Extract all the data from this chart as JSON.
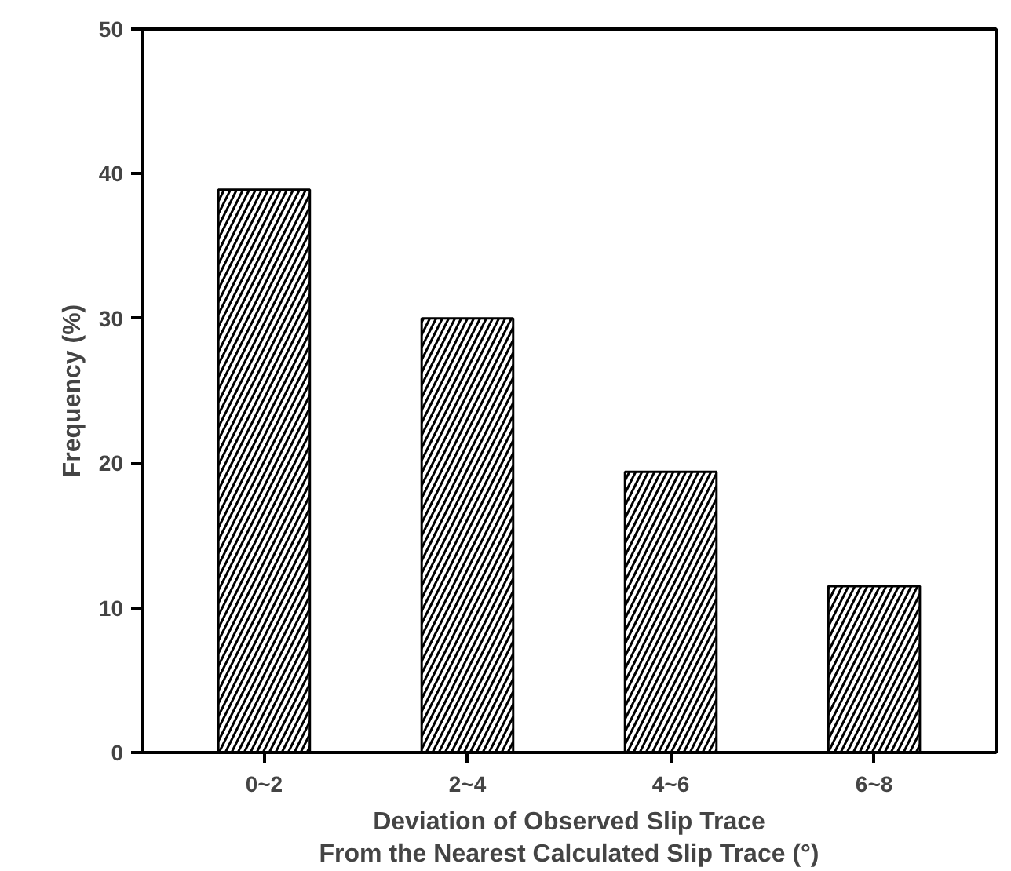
{
  "chart_data": {
    "type": "bar",
    "xlabel": "Deviation of Observed Slip Trace\nFrom the Nearest Calculated Slip Trace (°)",
    "ylabel": "Frequency (%)",
    "categories": [
      "0~2",
      "2~4",
      "4~6",
      "6~8"
    ],
    "values": [
      38.9,
      30.0,
      19.4,
      11.5
    ],
    "color": "#000000",
    "ylim": [
      0,
      50
    ],
    "yticks": [
      0,
      10,
      20,
      30,
      40,
      50
    ],
    "grid": false
  }
}
